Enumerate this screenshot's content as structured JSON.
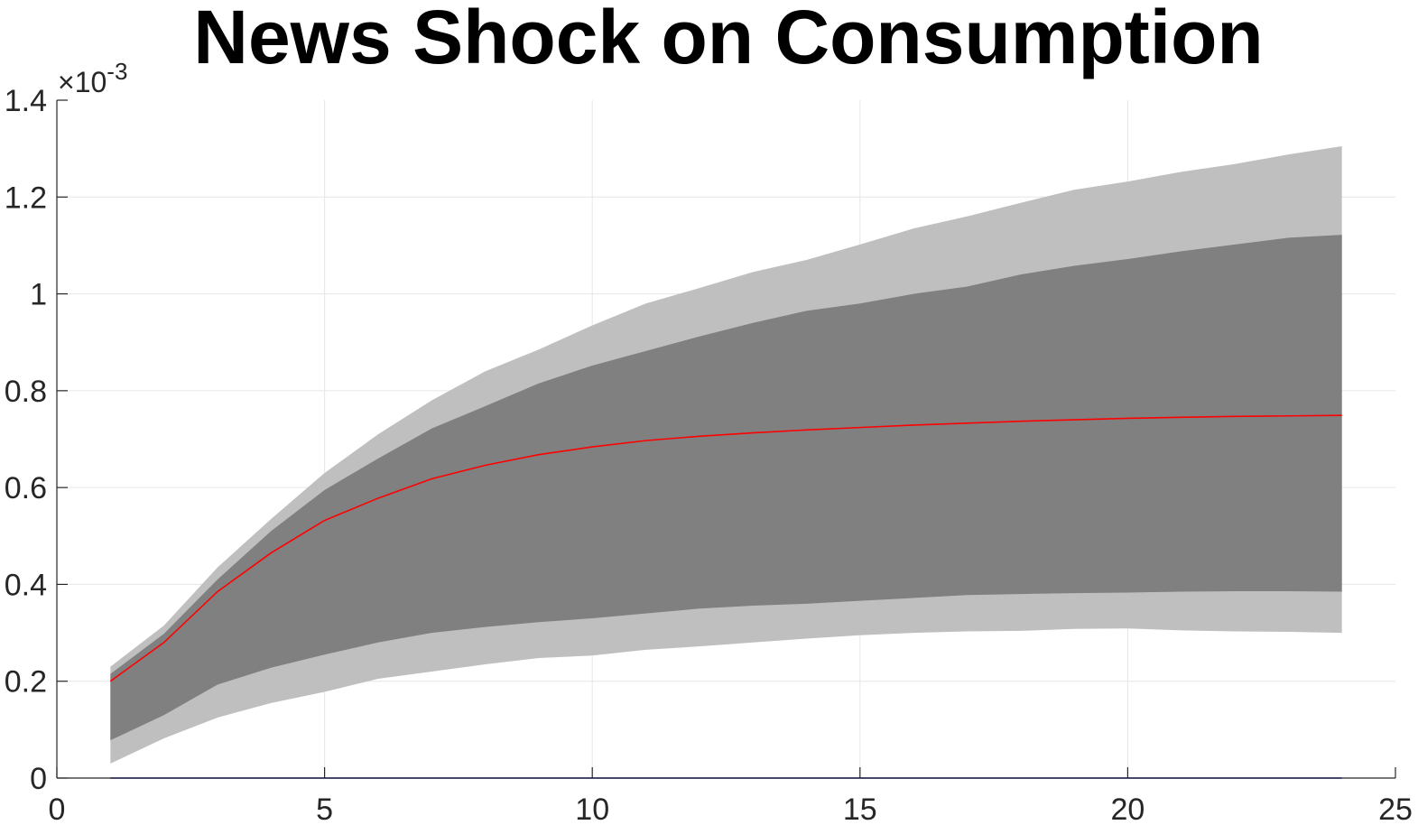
{
  "chart_data": {
    "type": "area",
    "title": "News Shock on Consumption",
    "xlabel": "",
    "ylabel": "",
    "y_scale_label": {
      "prefix": "×10",
      "exponent": "-3"
    },
    "xlim": [
      0,
      25
    ],
    "ylim": [
      0,
      1.4
    ],
    "y_units_multiplier": 0.001,
    "x_ticks": [
      0,
      5,
      10,
      15,
      20,
      25
    ],
    "y_ticks": [
      0,
      0.2,
      0.4,
      0.6,
      0.8,
      1,
      1.2,
      1.4
    ],
    "x_tick_labels": [
      "0",
      "5",
      "10",
      "15",
      "20",
      "25"
    ],
    "y_tick_labels": [
      "0",
      "0.2",
      "0.4",
      "0.6",
      "0.8",
      "1",
      "1.2",
      "1.4"
    ],
    "grid": true,
    "x": [
      1,
      2,
      3,
      4,
      5,
      6,
      7,
      8,
      9,
      10,
      11,
      12,
      13,
      14,
      15,
      16,
      17,
      18,
      19,
      20,
      21,
      22,
      23,
      24
    ],
    "series": [
      {
        "role": "outer-band",
        "color": "#bfbfbf",
        "upper": [
          0.23,
          0.315,
          0.435,
          0.535,
          0.63,
          0.71,
          0.78,
          0.84,
          0.885,
          0.935,
          0.98,
          1.012,
          1.045,
          1.07,
          1.102,
          1.135,
          1.16,
          1.188,
          1.215,
          1.232,
          1.252,
          1.268,
          1.288,
          1.305
        ],
        "lower": [
          0.03,
          0.082,
          0.125,
          0.155,
          0.178,
          0.205,
          0.22,
          0.235,
          0.248,
          0.253,
          0.265,
          0.272,
          0.28,
          0.288,
          0.295,
          0.3,
          0.303,
          0.304,
          0.308,
          0.309,
          0.305,
          0.303,
          0.302,
          0.3
        ]
      },
      {
        "role": "inner-band",
        "color": "#808080",
        "upper": [
          0.215,
          0.298,
          0.41,
          0.51,
          0.595,
          0.66,
          0.722,
          0.768,
          0.815,
          0.852,
          0.882,
          0.912,
          0.94,
          0.965,
          0.98,
          1.0,
          1.015,
          1.04,
          1.058,
          1.072,
          1.088,
          1.102,
          1.116,
          1.122
        ],
        "lower": [
          0.078,
          0.13,
          0.193,
          0.228,
          0.255,
          0.28,
          0.3,
          0.312,
          0.322,
          0.33,
          0.34,
          0.35,
          0.356,
          0.36,
          0.366,
          0.372,
          0.378,
          0.38,
          0.382,
          0.383,
          0.385,
          0.386,
          0.386,
          0.385
        ]
      },
      {
        "role": "median",
        "color": "#ff0000",
        "values": [
          0.2,
          0.28,
          0.385,
          0.465,
          0.532,
          0.578,
          0.618,
          0.646,
          0.668,
          0.684,
          0.697,
          0.706,
          0.713,
          0.719,
          0.724,
          0.729,
          0.733,
          0.737,
          0.74,
          0.743,
          0.745,
          0.747,
          0.748,
          0.749
        ]
      },
      {
        "role": "zero-line",
        "color": "#0000bf",
        "values": [
          0,
          0,
          0,
          0,
          0,
          0,
          0,
          0,
          0,
          0,
          0,
          0,
          0,
          0,
          0,
          0,
          0,
          0,
          0,
          0,
          0,
          0,
          0,
          0
        ]
      }
    ],
    "colors": {
      "axis": "#262626",
      "grid": "#e6e6e6"
    }
  }
}
